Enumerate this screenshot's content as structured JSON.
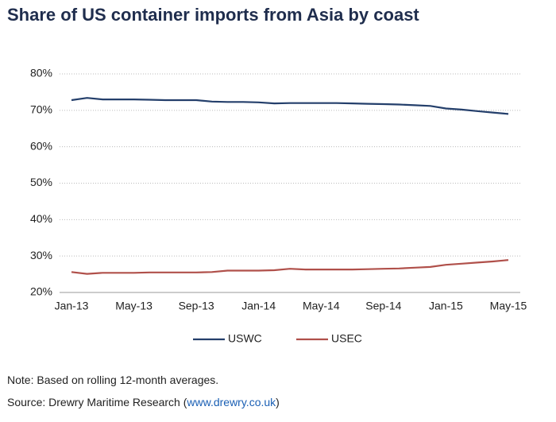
{
  "chart_data": {
    "type": "line",
    "title": "Share of US container imports from Asia by coast",
    "categories": [
      "Jan-13",
      null,
      null,
      null,
      "May-13",
      null,
      null,
      null,
      "Sep-13",
      null,
      null,
      null,
      "Jan-14",
      null,
      null,
      null,
      "May-14",
      null,
      null,
      null,
      "Sep-14",
      null,
      null,
      null,
      "Jan-15",
      null,
      null,
      null,
      "May-15"
    ],
    "series": [
      {
        "name": "USWC",
        "color": "#243f6b",
        "values": [
          72.8,
          73.4,
          73.0,
          73.0,
          73.0,
          72.9,
          72.8,
          72.8,
          72.8,
          72.4,
          72.3,
          72.3,
          72.2,
          71.9,
          72.0,
          72.0,
          72.0,
          72.0,
          71.9,
          71.8,
          71.7,
          71.6,
          71.4,
          71.2,
          70.5,
          70.2,
          69.8,
          69.4,
          69.0
        ]
      },
      {
        "name": "USEC",
        "color": "#b0504a",
        "values": [
          25.6,
          25.1,
          25.4,
          25.4,
          25.4,
          25.5,
          25.5,
          25.5,
          25.5,
          25.6,
          26.0,
          26.0,
          26.0,
          26.1,
          26.5,
          26.3,
          26.3,
          26.3,
          26.3,
          26.4,
          26.5,
          26.6,
          26.8,
          27.0,
          27.6,
          27.9,
          28.2,
          28.5,
          28.9
        ]
      }
    ],
    "ylim": [
      20,
      80
    ],
    "yticks": [
      {
        "value": 20,
        "label": "20%"
      },
      {
        "value": 30,
        "label": "30%"
      },
      {
        "value": 40,
        "label": "40%"
      },
      {
        "value": 50,
        "label": "50%"
      },
      {
        "value": 60,
        "label": "60%"
      },
      {
        "value": 70,
        "label": "70%"
      },
      {
        "value": 80,
        "label": "80%"
      }
    ],
    "grid": true,
    "legend": "bottom"
  },
  "notes": {
    "note": "Note: Based on rolling 12-month averages.",
    "source": {
      "text": "Source: Drewry Maritime Research (",
      "link": "www.drewry.co.uk",
      "end": ")"
    }
  }
}
